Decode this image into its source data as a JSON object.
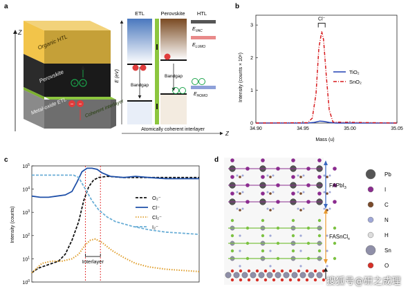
{
  "figure": {
    "watermark": "搜狐号@研之成理",
    "panel_labels": [
      "a",
      "b",
      "c",
      "d"
    ]
  },
  "panel_a": {
    "axis_z": "Z",
    "layers": [
      "Organic HTL",
      "Perovskite",
      "Metal-oxide ETL",
      "Coherent interlayer"
    ],
    "band": {
      "col_etl": "ETL",
      "col_perovskite": "Perovskite",
      "col_htl": "HTL",
      "e_axis": "E (eV)",
      "e_vac": "E",
      "e_vac_sub": "VAC",
      "e_lumo": "E",
      "e_lumo_sub": "LUMO",
      "e_homo": "E",
      "e_homo_sub": "HOMO",
      "bandgap_left": "Bandgap",
      "bandgap_mid": "Bandgap",
      "caption": "Atomically coherent interlayer",
      "z_label": "Z",
      "electron_sign": "−",
      "hole_sign": "+"
    },
    "colors": {
      "etl": "#3f6fb5",
      "perovskite": "#8b5a2b",
      "htl_vac": "#555555",
      "htl_lumo": "#e98a8a",
      "htl_homo": "#8ea0d9",
      "interlayer": "#8cc63f",
      "electron": "#e03c3c",
      "hole": "#1aa34a"
    }
  },
  "chart_b": {
    "type": "line",
    "xlabel": "Mass (u)",
    "ylabel": "Intensity (counts × 10⁶)",
    "xlim": [
      34.9,
      35.05
    ],
    "ylim": [
      0,
      3.3
    ],
    "xticks": [
      "34.90",
      "34.95",
      "35.00",
      "35.05"
    ],
    "yticks": [
      "0",
      "1",
      "2",
      "3"
    ],
    "annotation": "Cl⁻",
    "legend_position": "right",
    "series": [
      {
        "name": "TiO₂",
        "color": "#1f3fb4",
        "dash": "solid",
        "x": [
          34.9,
          34.955,
          34.962,
          34.968,
          34.972,
          34.978,
          34.985,
          35.05
        ],
        "y": [
          0.0,
          0.0,
          0.02,
          0.06,
          0.05,
          0.02,
          0.0,
          0.0
        ]
      },
      {
        "name": "SnO₂",
        "color": "#d7191c",
        "dash": "dashdot",
        "x": [
          34.9,
          34.955,
          34.96,
          34.964,
          34.967,
          34.97,
          34.972,
          34.975,
          34.978,
          34.982,
          35.05
        ],
        "y": [
          0.0,
          0.01,
          0.15,
          0.9,
          2.3,
          2.8,
          2.55,
          1.4,
          0.4,
          0.03,
          0.0
        ]
      }
    ]
  },
  "chart_c": {
    "type": "line",
    "ylabel": "Intensity (counts)",
    "yscale": "log",
    "ylim_exp": [
      0,
      5
    ],
    "xlim": [
      0,
      1
    ],
    "annotation": "Interlayer",
    "interlayer_x": [
      0.32,
      0.41
    ],
    "legend_position": "right",
    "series": [
      {
        "name": "O₂⁻",
        "color": "#111111",
        "dash": "dash",
        "x": [
          0,
          0.04,
          0.08,
          0.12,
          0.16,
          0.2,
          0.24,
          0.28,
          0.31,
          0.34,
          0.37,
          0.4,
          0.45,
          0.55,
          0.7,
          1
        ],
        "y": [
          0.4,
          0.6,
          0.7,
          0.8,
          0.9,
          1.2,
          1.8,
          2.6,
          3.5,
          4.1,
          4.4,
          4.5,
          4.55,
          4.5,
          4.5,
          4.5
        ]
      },
      {
        "name": "Cl⁻",
        "color": "#1e4fa8",
        "dash": "solid",
        "x": [
          0,
          0.05,
          0.1,
          0.15,
          0.2,
          0.24,
          0.27,
          0.3,
          0.33,
          0.36,
          0.39,
          0.42,
          0.47,
          0.55,
          0.62,
          0.7,
          0.8,
          0.9,
          1
        ],
        "y": [
          3.7,
          3.65,
          3.65,
          3.7,
          3.75,
          3.9,
          4.3,
          4.75,
          4.9,
          4.9,
          4.85,
          4.7,
          4.55,
          4.5,
          4.55,
          4.5,
          4.45,
          4.45,
          4.45
        ]
      },
      {
        "name": "Cl₂⁻",
        "color": "#e0a030",
        "dash": "dots",
        "x": [
          0,
          0.06,
          0.12,
          0.18,
          0.24,
          0.28,
          0.32,
          0.35,
          0.38,
          0.42,
          0.48,
          0.55,
          0.62,
          0.7,
          0.8,
          0.9,
          1
        ],
        "y": [
          0.4,
          0.8,
          0.9,
          0.9,
          1.0,
          1.2,
          1.6,
          1.8,
          1.85,
          1.7,
          1.35,
          1.05,
          0.8,
          0.65,
          0.55,
          0.5,
          0.45
        ]
      },
      {
        "name": "I₂⁻",
        "color": "#6aaed6",
        "dash": "dash",
        "x": [
          0,
          0.05,
          0.1,
          0.15,
          0.2,
          0.25,
          0.28,
          0.32,
          0.36,
          0.4,
          0.45,
          0.5,
          0.6,
          0.7,
          0.8,
          0.9,
          1
        ],
        "y": [
          4.6,
          4.6,
          4.6,
          4.6,
          4.6,
          4.6,
          4.5,
          4.0,
          3.5,
          3.1,
          2.8,
          2.6,
          2.4,
          2.25,
          2.15,
          2.1,
          2.05
        ]
      }
    ]
  },
  "panel_d": {
    "label_faprb": "FAPbI",
    "label_faprb_sub": "3",
    "label_fasncl": "FASnCl",
    "label_fasncl_sub": "x",
    "legend": [
      {
        "name": "Pb",
        "color": "#555555",
        "big": true
      },
      {
        "name": "I",
        "color": "#8b2c8f",
        "big": false
      },
      {
        "name": "C",
        "color": "#7a4a2a",
        "big": false
      },
      {
        "name": "N",
        "color": "#a0a8d8",
        "big": false
      },
      {
        "name": "H",
        "color": "#dddddd",
        "big": false
      },
      {
        "name": "Sn",
        "color": "#8f8fa8",
        "big": true
      },
      {
        "name": "O",
        "color": "#d73027",
        "big": false
      }
    ]
  }
}
